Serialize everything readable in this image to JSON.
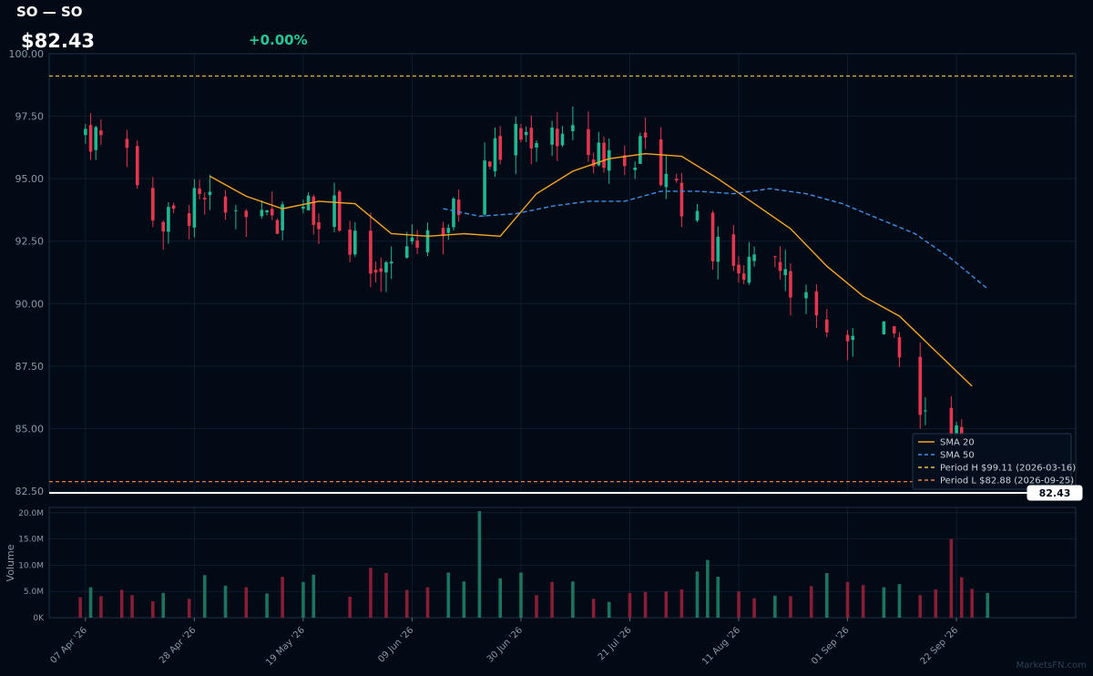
{
  "header": {
    "title": "SO — SO",
    "price": "$82.43",
    "change": "+0.00%"
  },
  "watermark": "MarketsFN.com",
  "colors": {
    "background": "#020a16",
    "up": "#1fb892",
    "down": "#e5364f",
    "sma20": "#f5a623",
    "sma50": "#3d8fe8",
    "period_high": "#e9c23a",
    "period_low": "#f07b3f",
    "change_text": "#23c895",
    "last_price_line": "#ffffff"
  },
  "chart_data": [
    {
      "type": "candlestick",
      "title": "SO — SO",
      "xlabel": "",
      "ylabel": "",
      "ylim": [
        82.43,
        100.0
      ],
      "yticks": [
        82.5,
        85.0,
        87.5,
        90.0,
        92.5,
        95.0,
        97.5,
        100.0
      ],
      "ytick_labels": [
        "82.50",
        "85.00",
        "87.50",
        "90.00",
        "92.50",
        "95.00",
        "97.50",
        "100.00"
      ],
      "x_ticks": [
        {
          "label": "07 Apr '26",
          "date": "2026-04-07"
        },
        {
          "label": "28 Apr '26",
          "date": "2026-04-28"
        },
        {
          "label": "19 May '26",
          "date": "2026-05-19"
        },
        {
          "label": "09 Jun '26",
          "date": "2026-06-09"
        },
        {
          "label": "30 Jun '26",
          "date": "2026-06-30"
        },
        {
          "label": "21 Jul '26",
          "date": "2026-07-21"
        },
        {
          "label": "11 Aug '26",
          "date": "2026-08-11"
        },
        {
          "label": "01 Sep '26",
          "date": "2026-09-01"
        },
        {
          "label": "22 Sep '26",
          "date": "2026-09-22"
        }
      ],
      "x_range": [
        "2026-03-31",
        "2026-10-15"
      ],
      "grid": true,
      "legend_position": "bottom-right",
      "last_price": 82.43,
      "last_price_label": "82.43",
      "series_close": [
        {
          "date": "2026-04-07",
          "close": 96.9
        },
        {
          "date": "2026-04-14",
          "close": 95.9
        },
        {
          "date": "2026-04-21",
          "close": 93.0
        },
        {
          "date": "2026-04-28",
          "close": 93.9
        },
        {
          "date": "2026-05-05",
          "close": 93.5
        },
        {
          "date": "2026-05-12",
          "close": 93.1
        },
        {
          "date": "2026-05-19",
          "close": 93.9
        },
        {
          "date": "2026-05-26",
          "close": 93.6
        },
        {
          "date": "2026-06-02",
          "close": 90.5
        },
        {
          "date": "2026-06-09",
          "close": 92.7
        },
        {
          "date": "2026-06-16",
          "close": 93.2
        },
        {
          "date": "2026-06-23",
          "close": 95.8
        },
        {
          "date": "2026-06-30",
          "close": 96.7
        },
        {
          "date": "2026-07-07",
          "close": 96.9
        },
        {
          "date": "2026-07-14",
          "close": 95.9
        },
        {
          "date": "2026-07-21",
          "close": 96.2
        },
        {
          "date": "2026-07-28",
          "close": 95.4
        },
        {
          "date": "2026-08-04",
          "close": 92.6
        },
        {
          "date": "2026-08-11",
          "close": 91.6
        },
        {
          "date": "2026-08-18",
          "close": 91.5
        },
        {
          "date": "2026-08-25",
          "close": 89.6
        },
        {
          "date": "2026-09-01",
          "close": 88.3
        },
        {
          "date": "2026-09-08",
          "close": 88.7
        },
        {
          "date": "2026-09-15",
          "close": 86.3
        },
        {
          "date": "2026-09-22",
          "close": 84.5
        },
        {
          "date": "2026-09-25",
          "close": 82.9
        }
      ],
      "series": [
        {
          "name": "SMA 20",
          "style": "solid",
          "color": "#f5a623",
          "points": [
            {
              "date": "2026-05-01",
              "value": 95.1
            },
            {
              "date": "2026-05-08",
              "value": 94.3
            },
            {
              "date": "2026-05-15",
              "value": 93.8
            },
            {
              "date": "2026-05-22",
              "value": 94.1
            },
            {
              "date": "2026-05-29",
              "value": 94.0
            },
            {
              "date": "2026-06-05",
              "value": 92.8
            },
            {
              "date": "2026-06-12",
              "value": 92.7
            },
            {
              "date": "2026-06-19",
              "value": 92.8
            },
            {
              "date": "2026-06-26",
              "value": 92.7
            },
            {
              "date": "2026-07-03",
              "value": 94.4
            },
            {
              "date": "2026-07-10",
              "value": 95.3
            },
            {
              "date": "2026-07-17",
              "value": 95.8
            },
            {
              "date": "2026-07-24",
              "value": 96.0
            },
            {
              "date": "2026-07-31",
              "value": 95.9
            },
            {
              "date": "2026-08-07",
              "value": 95.0
            },
            {
              "date": "2026-08-14",
              "value": 94.0
            },
            {
              "date": "2026-08-21",
              "value": 93.0
            },
            {
              "date": "2026-08-28",
              "value": 91.5
            },
            {
              "date": "2026-09-04",
              "value": 90.3
            },
            {
              "date": "2026-09-11",
              "value": 89.5
            },
            {
              "date": "2026-09-18",
              "value": 88.1
            },
            {
              "date": "2026-09-25",
              "value": 86.7
            }
          ]
        },
        {
          "name": "SMA 50",
          "style": "dashed",
          "color": "#3d8fe8",
          "points": [
            {
              "date": "2026-06-15",
              "value": 93.8
            },
            {
              "date": "2026-06-22",
              "value": 93.5
            },
            {
              "date": "2026-06-29",
              "value": 93.6
            },
            {
              "date": "2026-07-06",
              "value": 93.9
            },
            {
              "date": "2026-07-13",
              "value": 94.1
            },
            {
              "date": "2026-07-20",
              "value": 94.1
            },
            {
              "date": "2026-07-27",
              "value": 94.5
            },
            {
              "date": "2026-08-03",
              "value": 94.5
            },
            {
              "date": "2026-08-10",
              "value": 94.4
            },
            {
              "date": "2026-08-17",
              "value": 94.6
            },
            {
              "date": "2026-08-24",
              "value": 94.4
            },
            {
              "date": "2026-08-31",
              "value": 94.0
            },
            {
              "date": "2026-09-07",
              "value": 93.4
            },
            {
              "date": "2026-09-14",
              "value": 92.8
            },
            {
              "date": "2026-09-21",
              "value": 91.8
            },
            {
              "date": "2026-09-28",
              "value": 90.6
            }
          ]
        },
        {
          "name": "Period H $99.11 (2026-03-16)",
          "style": "dashed",
          "color": "#e9c23a",
          "value": 99.11
        },
        {
          "name": "Period L $82.88 (2026-09-25)",
          "style": "dashed",
          "color": "#f07b3f",
          "value": 82.88
        }
      ]
    },
    {
      "type": "bar",
      "title": "",
      "xlabel": "",
      "ylabel": "Volume",
      "ylim": [
        0,
        21000000
      ],
      "yticks": [
        0,
        5000000,
        10000000,
        15000000,
        20000000
      ],
      "ytick_labels": [
        "0K",
        "5.0M",
        "10.0M",
        "15.0M",
        "20.0M"
      ],
      "grid": true,
      "bars": [
        {
          "date": "2026-04-06",
          "value": 3900000,
          "dir": "down"
        },
        {
          "date": "2026-04-08",
          "value": 5800000,
          "dir": "up"
        },
        {
          "date": "2026-04-10",
          "value": 4100000,
          "dir": "down"
        },
        {
          "date": "2026-04-14",
          "value": 5300000,
          "dir": "down"
        },
        {
          "date": "2026-04-16",
          "value": 4300000,
          "dir": "down"
        },
        {
          "date": "2026-04-20",
          "value": 3100000,
          "dir": "down"
        },
        {
          "date": "2026-04-22",
          "value": 4700000,
          "dir": "up"
        },
        {
          "date": "2026-04-27",
          "value": 3600000,
          "dir": "down"
        },
        {
          "date": "2026-04-30",
          "value": 8100000,
          "dir": "up"
        },
        {
          "date": "2026-05-04",
          "value": 6100000,
          "dir": "up"
        },
        {
          "date": "2026-05-08",
          "value": 5800000,
          "dir": "down"
        },
        {
          "date": "2026-05-12",
          "value": 4600000,
          "dir": "up"
        },
        {
          "date": "2026-05-15",
          "value": 7800000,
          "dir": "down"
        },
        {
          "date": "2026-05-19",
          "value": 6800000,
          "dir": "up"
        },
        {
          "date": "2026-05-21",
          "value": 8200000,
          "dir": "up"
        },
        {
          "date": "2026-05-28",
          "value": 4000000,
          "dir": "down"
        },
        {
          "date": "2026-06-01",
          "value": 9500000,
          "dir": "down"
        },
        {
          "date": "2026-06-04",
          "value": 8500000,
          "dir": "down"
        },
        {
          "date": "2026-06-08",
          "value": 5300000,
          "dir": "down"
        },
        {
          "date": "2026-06-12",
          "value": 5800000,
          "dir": "down"
        },
        {
          "date": "2026-06-16",
          "value": 8600000,
          "dir": "up"
        },
        {
          "date": "2026-06-19",
          "value": 6900000,
          "dir": "up"
        },
        {
          "date": "2026-06-22",
          "value": 20300000,
          "dir": "up"
        },
        {
          "date": "2026-06-26",
          "value": 7500000,
          "dir": "up"
        },
        {
          "date": "2026-06-30",
          "value": 8600000,
          "dir": "up"
        },
        {
          "date": "2026-07-03",
          "value": 4300000,
          "dir": "down"
        },
        {
          "date": "2026-07-06",
          "value": 6800000,
          "dir": "down"
        },
        {
          "date": "2026-07-10",
          "value": 6900000,
          "dir": "up"
        },
        {
          "date": "2026-07-14",
          "value": 3600000,
          "dir": "down"
        },
        {
          "date": "2026-07-17",
          "value": 3000000,
          "dir": "up"
        },
        {
          "date": "2026-07-21",
          "value": 4700000,
          "dir": "down"
        },
        {
          "date": "2026-07-24",
          "value": 4900000,
          "dir": "down"
        },
        {
          "date": "2026-07-28",
          "value": 5000000,
          "dir": "down"
        },
        {
          "date": "2026-07-31",
          "value": 5400000,
          "dir": "down"
        },
        {
          "date": "2026-08-03",
          "value": 8800000,
          "dir": "up"
        },
        {
          "date": "2026-08-05",
          "value": 11000000,
          "dir": "up"
        },
        {
          "date": "2026-08-07",
          "value": 7800000,
          "dir": "up"
        },
        {
          "date": "2026-08-11",
          "value": 5000000,
          "dir": "down"
        },
        {
          "date": "2026-08-14",
          "value": 3700000,
          "dir": "down"
        },
        {
          "date": "2026-08-18",
          "value": 4200000,
          "dir": "up"
        },
        {
          "date": "2026-08-21",
          "value": 4100000,
          "dir": "down"
        },
        {
          "date": "2026-08-25",
          "value": 6000000,
          "dir": "down"
        },
        {
          "date": "2026-08-28",
          "value": 8500000,
          "dir": "up"
        },
        {
          "date": "2026-09-01",
          "value": 6800000,
          "dir": "down"
        },
        {
          "date": "2026-09-04",
          "value": 6200000,
          "dir": "down"
        },
        {
          "date": "2026-09-08",
          "value": 5800000,
          "dir": "up"
        },
        {
          "date": "2026-09-11",
          "value": 6400000,
          "dir": "up"
        },
        {
          "date": "2026-09-15",
          "value": 4300000,
          "dir": "down"
        },
        {
          "date": "2026-09-18",
          "value": 5400000,
          "dir": "down"
        },
        {
          "date": "2026-09-21",
          "value": 15000000,
          "dir": "down"
        },
        {
          "date": "2026-09-23",
          "value": 7700000,
          "dir": "down"
        },
        {
          "date": "2026-09-25",
          "value": 5500000,
          "dir": "down"
        },
        {
          "date": "2026-09-28",
          "value": 4700000,
          "dir": "up"
        }
      ]
    }
  ]
}
